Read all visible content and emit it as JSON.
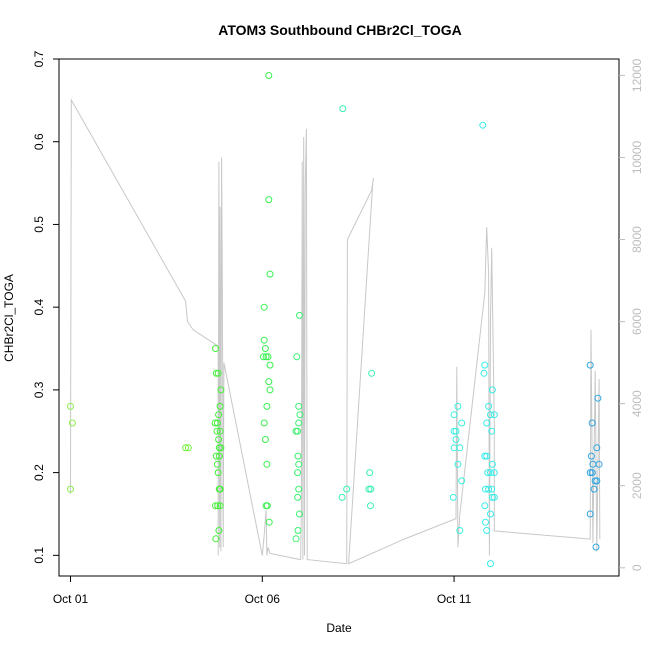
{
  "chart_data": {
    "type": "scatter",
    "title": "ATOM3 Southbound CHBr2Cl_TOGA",
    "xlabel": "Date",
    "ylabel": "CHBr2Cl_TOGA",
    "x_ticks": [
      "Oct 01",
      "Oct 06",
      "Oct 11"
    ],
    "x_tick_days": [
      0,
      5,
      10
    ],
    "xlim_days": [
      -0.3,
      14.3
    ],
    "ylim": [
      0.075,
      0.7
    ],
    "y_ticks": [
      0.1,
      0.2,
      0.3,
      0.4,
      0.5,
      0.6,
      0.7
    ],
    "y2_ticks": [
      0,
      2000,
      4000,
      6000,
      8000,
      10000,
      12000
    ],
    "y2lim": [
      -200,
      12400
    ],
    "grid": false,
    "legend": "none",
    "line_color": "#c8c8c8",
    "series": [
      {
        "type": "scatter",
        "color": "#8cf04a",
        "points": [
          [
            0.0,
            0.28
          ],
          [
            0.05,
            0.26
          ],
          [
            0.0,
            0.18
          ]
        ]
      },
      {
        "type": "scatter",
        "color": "#6ff03c",
        "points": [
          [
            3.0,
            0.23
          ],
          [
            3.07,
            0.23
          ]
        ]
      },
      {
        "type": "scatter",
        "color": "#44f03a",
        "points": [
          [
            3.78,
            0.35
          ],
          [
            3.8,
            0.32
          ],
          [
            3.85,
            0.32
          ],
          [
            3.77,
            0.26
          ],
          [
            3.83,
            0.26
          ],
          [
            3.9,
            0.25
          ],
          [
            3.86,
            0.24
          ],
          [
            3.88,
            0.23
          ],
          [
            3.92,
            0.23
          ],
          [
            3.8,
            0.22
          ],
          [
            3.83,
            0.21
          ],
          [
            3.85,
            0.2
          ],
          [
            3.9,
            0.18
          ],
          [
            3.88,
            0.18
          ],
          [
            3.78,
            0.16
          ],
          [
            3.84,
            0.16
          ],
          [
            3.9,
            0.16
          ],
          [
            3.87,
            0.13
          ],
          [
            3.79,
            0.12
          ],
          [
            3.92,
            0.3
          ],
          [
            3.9,
            0.28
          ],
          [
            3.86,
            0.27
          ],
          [
            3.82,
            0.25
          ],
          [
            3.88,
            0.22
          ]
        ]
      },
      {
        "type": "scatter",
        "color": "#3af050",
        "points": [
          [
            5.17,
            0.68
          ],
          [
            5.17,
            0.53
          ],
          [
            5.2,
            0.44
          ],
          [
            5.05,
            0.4
          ],
          [
            5.05,
            0.36
          ],
          [
            5.08,
            0.35
          ],
          [
            5.03,
            0.34
          ],
          [
            5.1,
            0.34
          ],
          [
            5.15,
            0.34
          ],
          [
            5.2,
            0.33
          ],
          [
            5.17,
            0.31
          ],
          [
            5.2,
            0.3
          ],
          [
            5.12,
            0.28
          ],
          [
            5.05,
            0.26
          ],
          [
            5.08,
            0.24
          ],
          [
            5.12,
            0.21
          ],
          [
            5.1,
            0.16
          ],
          [
            5.13,
            0.16
          ],
          [
            5.18,
            0.14
          ]
        ]
      },
      {
        "type": "scatter",
        "color": "#3af070",
        "points": [
          [
            5.97,
            0.39
          ],
          [
            5.9,
            0.34
          ],
          [
            5.95,
            0.28
          ],
          [
            5.98,
            0.27
          ],
          [
            5.95,
            0.26
          ],
          [
            5.88,
            0.25
          ],
          [
            5.92,
            0.25
          ],
          [
            5.93,
            0.22
          ],
          [
            5.95,
            0.21
          ],
          [
            5.92,
            0.2
          ],
          [
            5.95,
            0.18
          ],
          [
            5.92,
            0.17
          ],
          [
            5.97,
            0.15
          ],
          [
            5.93,
            0.13
          ],
          [
            5.88,
            0.12
          ]
        ]
      },
      {
        "type": "scatter",
        "color": "#3af0b4",
        "points": [
          [
            7.1,
            0.64
          ],
          [
            7.2,
            0.18
          ],
          [
            7.08,
            0.17
          ],
          [
            7.85,
            0.32
          ],
          [
            7.8,
            0.2
          ],
          [
            7.78,
            0.18
          ],
          [
            7.83,
            0.18
          ],
          [
            7.82,
            0.16
          ]
        ]
      },
      {
        "type": "scatter",
        "color": "#3af0e0",
        "points": [
          [
            10.1,
            0.28
          ],
          [
            10.0,
            0.27
          ],
          [
            10.2,
            0.26
          ],
          [
            10.05,
            0.25
          ],
          [
            10.0,
            0.25
          ],
          [
            10.15,
            0.23
          ],
          [
            10.0,
            0.23
          ],
          [
            10.05,
            0.24
          ],
          [
            10.1,
            0.21
          ],
          [
            10.2,
            0.19
          ],
          [
            9.98,
            0.17
          ],
          [
            10.15,
            0.13
          ]
        ]
      },
      {
        "type": "scatter",
        "color": "#3aece8",
        "points": [
          [
            10.75,
            0.62
          ],
          [
            10.8,
            0.33
          ],
          [
            10.78,
            0.32
          ],
          [
            11.0,
            0.3
          ],
          [
            10.9,
            0.28
          ],
          [
            10.95,
            0.27
          ],
          [
            11.05,
            0.27
          ],
          [
            10.85,
            0.26
          ],
          [
            10.98,
            0.25
          ],
          [
            10.8,
            0.22
          ],
          [
            10.85,
            0.22
          ],
          [
            11.0,
            0.21
          ],
          [
            10.88,
            0.2
          ],
          [
            10.95,
            0.2
          ],
          [
            11.05,
            0.2
          ],
          [
            10.82,
            0.18
          ],
          [
            10.9,
            0.18
          ],
          [
            10.98,
            0.18
          ],
          [
            11.0,
            0.17
          ],
          [
            11.05,
            0.17
          ],
          [
            10.8,
            0.16
          ],
          [
            10.95,
            0.15
          ],
          [
            10.82,
            0.14
          ],
          [
            10.85,
            0.13
          ],
          [
            10.95,
            0.09
          ]
        ]
      },
      {
        "type": "scatter",
        "color": "#2fa6e0",
        "points": [
          [
            13.55,
            0.33
          ],
          [
            13.6,
            0.26
          ],
          [
            13.75,
            0.29
          ],
          [
            13.72,
            0.23
          ],
          [
            13.58,
            0.22
          ],
          [
            13.62,
            0.21
          ],
          [
            13.55,
            0.2
          ],
          [
            13.6,
            0.2
          ],
          [
            13.68,
            0.19
          ],
          [
            13.72,
            0.19
          ],
          [
            13.65,
            0.18
          ],
          [
            13.55,
            0.15
          ],
          [
            13.7,
            0.11
          ],
          [
            13.78,
            0.21
          ]
        ]
      },
      {
        "type": "line",
        "axis": "right",
        "color": "#c8c8c8",
        "points": [
          [
            0.0,
            1800
          ],
          [
            0.02,
            11400
          ],
          [
            3.0,
            6500
          ],
          [
            3.05,
            6000
          ],
          [
            3.2,
            5800
          ],
          [
            3.85,
            5400
          ],
          [
            3.85,
            300
          ],
          [
            3.87,
            9900
          ],
          [
            3.89,
            500
          ],
          [
            3.9,
            8800
          ],
          [
            3.92,
            400
          ],
          [
            3.94,
            10000
          ],
          [
            3.96,
            6600
          ],
          [
            3.98,
            500
          ],
          [
            4.0,
            5000
          ],
          [
            5.0,
            300
          ],
          [
            5.05,
            800
          ],
          [
            5.1,
            1400
          ],
          [
            5.12,
            300
          ],
          [
            5.15,
            500
          ],
          [
            5.2,
            350
          ],
          [
            6.0,
            200
          ],
          [
            6.02,
            1500
          ],
          [
            6.04,
            9900
          ],
          [
            6.06,
            200
          ],
          [
            6.08,
            10500
          ],
          [
            6.1,
            300
          ],
          [
            6.12,
            9200
          ],
          [
            6.15,
            10700
          ],
          [
            6.17,
            200
          ],
          [
            7.2,
            100
          ],
          [
            7.22,
            8000
          ],
          [
            7.85,
            9200
          ],
          [
            7.9,
            9500
          ],
          [
            7.88,
            9400
          ],
          [
            7.25,
            100
          ],
          [
            8.7,
            700
          ],
          [
            10.05,
            1200
          ],
          [
            10.07,
            4900
          ],
          [
            10.1,
            500
          ],
          [
            10.15,
            1300
          ],
          [
            10.8,
            6700
          ],
          [
            10.85,
            8300
          ],
          [
            10.9,
            7200
          ],
          [
            10.92,
            300
          ],
          [
            10.95,
            6000
          ],
          [
            10.98,
            7800
          ],
          [
            11.05,
            3500
          ],
          [
            11.05,
            900
          ],
          [
            13.55,
            700
          ],
          [
            13.57,
            5800
          ],
          [
            13.62,
            600
          ],
          [
            13.68,
            4800
          ],
          [
            13.72,
            400
          ],
          [
            13.78,
            4600
          ],
          [
            13.8,
            700
          ]
        ]
      }
    ]
  }
}
